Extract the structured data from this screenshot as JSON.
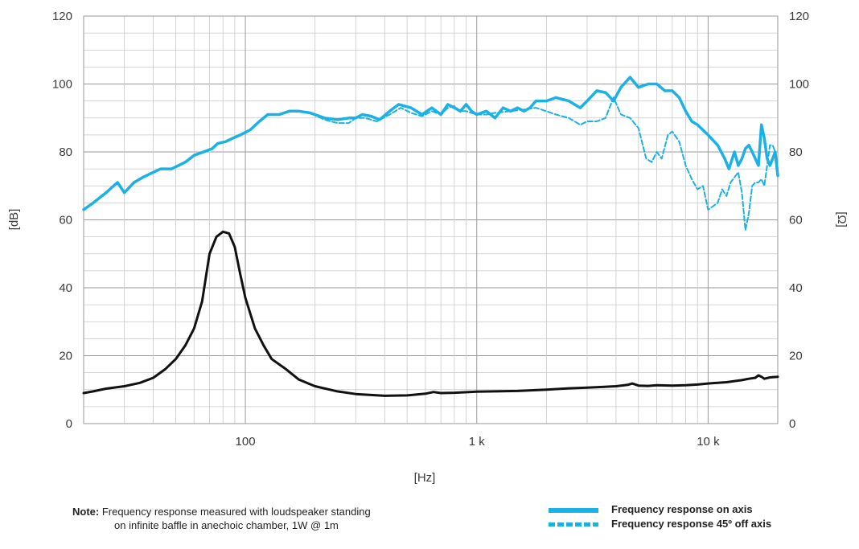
{
  "chart_data": {
    "type": "line",
    "title": "",
    "xlabel": "[Hz]",
    "ylabel_left": "[dB]",
    "ylabel_right": "[Ω]",
    "x_scale": "log",
    "xlim": [
      20,
      20000
    ],
    "ylim_left": [
      0,
      120
    ],
    "ylim_right": [
      0,
      120
    ],
    "x_tick_labels": [
      {
        "value": 100,
        "label": "100"
      },
      {
        "value": 1000,
        "label": "1 k"
      },
      {
        "value": 10000,
        "label": "10 k"
      }
    ],
    "y_ticks": [
      0,
      20,
      40,
      60,
      80,
      100,
      120
    ],
    "grid": true,
    "legend_position": "bottom-right",
    "series": [
      {
        "name": "Frequency response on axis",
        "color": "#1ab2e6",
        "style": "solid",
        "axis": "left",
        "points": [
          [
            20,
            63
          ],
          [
            22,
            65
          ],
          [
            25,
            68
          ],
          [
            28,
            71
          ],
          [
            30,
            68
          ],
          [
            33,
            71
          ],
          [
            36,
            72.5
          ],
          [
            40,
            74
          ],
          [
            43,
            75
          ],
          [
            48,
            75
          ],
          [
            55,
            77
          ],
          [
            60,
            79
          ],
          [
            66,
            80
          ],
          [
            72,
            81
          ],
          [
            76,
            82.5
          ],
          [
            82,
            83
          ],
          [
            88,
            84
          ],
          [
            95,
            85
          ],
          [
            105,
            86.5
          ],
          [
            115,
            89
          ],
          [
            125,
            91
          ],
          [
            140,
            91
          ],
          [
            155,
            92
          ],
          [
            170,
            92
          ],
          [
            190,
            91.5
          ],
          [
            220,
            90
          ],
          [
            250,
            89.5
          ],
          [
            280,
            90
          ],
          [
            300,
            90
          ],
          [
            320,
            91
          ],
          [
            350,
            90.5
          ],
          [
            380,
            89.5
          ],
          [
            420,
            92
          ],
          [
            460,
            94
          ],
          [
            520,
            93
          ],
          [
            580,
            91
          ],
          [
            640,
            93
          ],
          [
            700,
            91
          ],
          [
            750,
            94
          ],
          [
            800,
            93
          ],
          [
            850,
            92
          ],
          [
            900,
            94
          ],
          [
            950,
            92
          ],
          [
            1000,
            91
          ],
          [
            1100,
            92
          ],
          [
            1200,
            90
          ],
          [
            1300,
            93
          ],
          [
            1400,
            92
          ],
          [
            1500,
            93
          ],
          [
            1600,
            92
          ],
          [
            1700,
            93
          ],
          [
            1800,
            95
          ],
          [
            2000,
            95
          ],
          [
            2200,
            96
          ],
          [
            2500,
            95
          ],
          [
            2800,
            93
          ],
          [
            3000,
            95
          ],
          [
            3300,
            98
          ],
          [
            3600,
            97.5
          ],
          [
            3900,
            95
          ],
          [
            4200,
            99
          ],
          [
            4600,
            102
          ],
          [
            5000,
            99
          ],
          [
            5500,
            100
          ],
          [
            6000,
            100
          ],
          [
            6500,
            98
          ],
          [
            7000,
            98
          ],
          [
            7500,
            96
          ],
          [
            8000,
            92
          ],
          [
            8500,
            89
          ],
          [
            9000,
            88
          ],
          [
            10000,
            85
          ],
          [
            11000,
            82
          ],
          [
            11800,
            78
          ],
          [
            12300,
            75
          ],
          [
            13000,
            80
          ],
          [
            13500,
            76
          ],
          [
            14000,
            78
          ],
          [
            14500,
            81
          ],
          [
            15000,
            82
          ],
          [
            15500,
            80
          ],
          [
            16000,
            78
          ],
          [
            16500,
            76
          ],
          [
            17000,
            88
          ],
          [
            17500,
            84
          ],
          [
            18000,
            78
          ],
          [
            18500,
            76
          ],
          [
            19000,
            78
          ],
          [
            19500,
            80
          ],
          [
            20000,
            73
          ]
        ]
      },
      {
        "name": "Frequency response 45º off axis",
        "color": "#1ab2e6",
        "style": "dashed",
        "axis": "left",
        "points": [
          [
            20,
            63
          ],
          [
            22,
            65
          ],
          [
            25,
            68
          ],
          [
            28,
            71
          ],
          [
            30,
            68
          ],
          [
            33,
            71
          ],
          [
            36,
            72.5
          ],
          [
            40,
            74
          ],
          [
            43,
            75
          ],
          [
            48,
            75
          ],
          [
            55,
            77
          ],
          [
            60,
            79
          ],
          [
            66,
            80
          ],
          [
            72,
            81
          ],
          [
            76,
            82.5
          ],
          [
            82,
            83
          ],
          [
            88,
            84
          ],
          [
            95,
            85
          ],
          [
            105,
            86.5
          ],
          [
            115,
            89
          ],
          [
            125,
            91
          ],
          [
            140,
            91
          ],
          [
            155,
            92
          ],
          [
            170,
            92
          ],
          [
            190,
            91.5
          ],
          [
            220,
            89.5
          ],
          [
            250,
            88.5
          ],
          [
            280,
            88.5
          ],
          [
            300,
            90
          ],
          [
            330,
            90
          ],
          [
            370,
            89
          ],
          [
            420,
            91
          ],
          [
            470,
            93
          ],
          [
            520,
            91.5
          ],
          [
            580,
            90.5
          ],
          [
            640,
            92
          ],
          [
            700,
            91
          ],
          [
            750,
            93
          ],
          [
            800,
            93.5
          ],
          [
            850,
            92
          ],
          [
            900,
            92
          ],
          [
            1000,
            91
          ],
          [
            1100,
            91
          ],
          [
            1200,
            91.5
          ],
          [
            1400,
            92
          ],
          [
            1600,
            92.5
          ],
          [
            1800,
            93
          ],
          [
            2000,
            92
          ],
          [
            2200,
            91
          ],
          [
            2500,
            90
          ],
          [
            2800,
            88
          ],
          [
            3000,
            89
          ],
          [
            3300,
            89
          ],
          [
            3600,
            90
          ],
          [
            3900,
            96
          ],
          [
            4200,
            91
          ],
          [
            4600,
            90
          ],
          [
            5000,
            87
          ],
          [
            5400,
            78
          ],
          [
            5700,
            77
          ],
          [
            6000,
            80
          ],
          [
            6300,
            78
          ],
          [
            6700,
            85
          ],
          [
            7000,
            86
          ],
          [
            7500,
            83
          ],
          [
            8000,
            76
          ],
          [
            8500,
            72
          ],
          [
            9000,
            69
          ],
          [
            9500,
            70
          ],
          [
            10000,
            63
          ],
          [
            10500,
            64
          ],
          [
            11000,
            65
          ],
          [
            11500,
            69
          ],
          [
            12000,
            67
          ],
          [
            12500,
            71
          ],
          [
            13500,
            74
          ],
          [
            14000,
            68
          ],
          [
            14500,
            57
          ],
          [
            15000,
            62
          ],
          [
            15500,
            70
          ],
          [
            16000,
            71
          ],
          [
            16500,
            71
          ],
          [
            17000,
            72
          ],
          [
            17500,
            70
          ],
          [
            18000,
            76
          ],
          [
            18500,
            82
          ],
          [
            19000,
            82
          ],
          [
            19500,
            80
          ],
          [
            20000,
            75
          ]
        ]
      },
      {
        "name": "",
        "color": "#111111",
        "style": "solid",
        "axis": "right",
        "points": [
          [
            20,
            9
          ],
          [
            22,
            9.5
          ],
          [
            25,
            10.3
          ],
          [
            30,
            11
          ],
          [
            35,
            12
          ],
          [
            40,
            13.5
          ],
          [
            45,
            16
          ],
          [
            50,
            19
          ],
          [
            55,
            23
          ],
          [
            60,
            28
          ],
          [
            65,
            36
          ],
          [
            70,
            50
          ],
          [
            75,
            55
          ],
          [
            80,
            56.5
          ],
          [
            85,
            56
          ],
          [
            90,
            52
          ],
          [
            95,
            44
          ],
          [
            100,
            37
          ],
          [
            110,
            28
          ],
          [
            120,
            23
          ],
          [
            130,
            19
          ],
          [
            150,
            16
          ],
          [
            170,
            13
          ],
          [
            200,
            11
          ],
          [
            250,
            9.5
          ],
          [
            300,
            8.7
          ],
          [
            400,
            8.2
          ],
          [
            500,
            8.3
          ],
          [
            600,
            8.8
          ],
          [
            650,
            9.3
          ],
          [
            700,
            9
          ],
          [
            800,
            9.1
          ],
          [
            1000,
            9.4
          ],
          [
            1500,
            9.6
          ],
          [
            2000,
            10
          ],
          [
            2500,
            10.4
          ],
          [
            3000,
            10.6
          ],
          [
            3500,
            10.8
          ],
          [
            4000,
            11
          ],
          [
            4500,
            11.4
          ],
          [
            4700,
            11.8
          ],
          [
            5000,
            11.2
          ],
          [
            5500,
            11.1
          ],
          [
            6000,
            11.3
          ],
          [
            7000,
            11.2
          ],
          [
            8000,
            11.3
          ],
          [
            9000,
            11.5
          ],
          [
            10000,
            11.8
          ],
          [
            12000,
            12.2
          ],
          [
            14000,
            12.8
          ],
          [
            15000,
            13.2
          ],
          [
            16000,
            13.5
          ],
          [
            16500,
            14.2
          ],
          [
            17000,
            13.8
          ],
          [
            17500,
            13.2
          ],
          [
            18500,
            13.6
          ],
          [
            20000,
            13.8
          ]
        ]
      }
    ]
  },
  "note": {
    "label": "Note:",
    "line1": " Frequency response measured with loudspeaker standing",
    "line2": "on infinite baffle in anechoic chamber, 1W @ 1m"
  }
}
